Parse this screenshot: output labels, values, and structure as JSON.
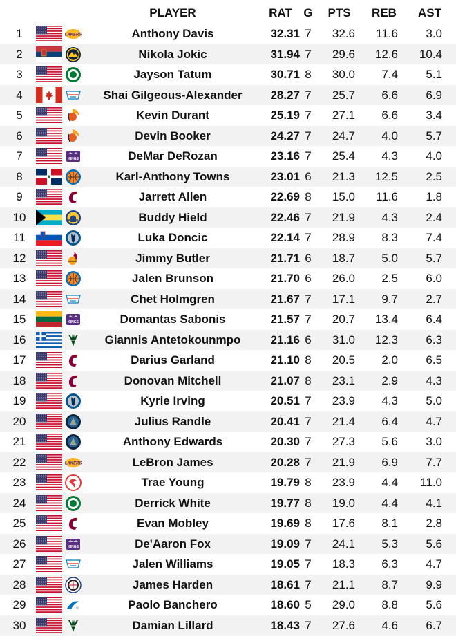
{
  "columns": {
    "player": "PLAYER",
    "rat": "RAT",
    "g": "G",
    "pts": "PTS",
    "reb": "REB",
    "ast": "AST"
  },
  "rows": [
    {
      "rank": "1",
      "flag": "usa",
      "team": "lakers",
      "name": "Anthony Davis",
      "rat": "32.31",
      "g": "7",
      "pts": "32.6",
      "reb": "11.6",
      "ast": "3.0"
    },
    {
      "rank": "2",
      "flag": "serbia",
      "team": "nuggets",
      "name": "Nikola Jokic",
      "rat": "31.94",
      "g": "7",
      "pts": "29.6",
      "reb": "12.6",
      "ast": "10.4"
    },
    {
      "rank": "3",
      "flag": "usa",
      "team": "celtics",
      "name": "Jayson Tatum",
      "rat": "30.71",
      "g": "8",
      "pts": "30.0",
      "reb": "7.4",
      "ast": "5.1"
    },
    {
      "rank": "4",
      "flag": "canada",
      "team": "thunder",
      "name": "Shai Gilgeous-Alexander",
      "rat": "28.27",
      "g": "7",
      "pts": "25.7",
      "reb": "6.6",
      "ast": "6.9"
    },
    {
      "rank": "5",
      "flag": "usa",
      "team": "suns",
      "name": "Kevin Durant",
      "rat": "25.19",
      "g": "7",
      "pts": "27.1",
      "reb": "6.6",
      "ast": "3.4"
    },
    {
      "rank": "6",
      "flag": "usa",
      "team": "suns",
      "name": "Devin Booker",
      "rat": "24.27",
      "g": "7",
      "pts": "24.7",
      "reb": "4.0",
      "ast": "5.7"
    },
    {
      "rank": "7",
      "flag": "usa",
      "team": "kings",
      "name": "DeMar DeRozan",
      "rat": "23.16",
      "g": "7",
      "pts": "25.4",
      "reb": "4.3",
      "ast": "4.0"
    },
    {
      "rank": "8",
      "flag": "dominican",
      "team": "knicks",
      "name": "Karl-Anthony Towns",
      "rat": "23.01",
      "g": "6",
      "pts": "21.3",
      "reb": "12.5",
      "ast": "2.5"
    },
    {
      "rank": "9",
      "flag": "usa",
      "team": "cavaliers",
      "name": "Jarrett Allen",
      "rat": "22.69",
      "g": "8",
      "pts": "15.0",
      "reb": "11.6",
      "ast": "1.8"
    },
    {
      "rank": "10",
      "flag": "bahamas",
      "team": "warriors",
      "name": "Buddy Hield",
      "rat": "22.46",
      "g": "7",
      "pts": "21.9",
      "reb": "4.3",
      "ast": "2.4"
    },
    {
      "rank": "11",
      "flag": "slovenia",
      "team": "mavericks",
      "name": "Luka Doncic",
      "rat": "22.14",
      "g": "7",
      "pts": "28.9",
      "reb": "8.3",
      "ast": "7.4"
    },
    {
      "rank": "12",
      "flag": "usa",
      "team": "heat",
      "name": "Jimmy Butler",
      "rat": "21.71",
      "g": "6",
      "pts": "18.7",
      "reb": "5.0",
      "ast": "5.7"
    },
    {
      "rank": "13",
      "flag": "usa",
      "team": "knicks",
      "name": "Jalen Brunson",
      "rat": "21.70",
      "g": "6",
      "pts": "26.0",
      "reb": "2.5",
      "ast": "6.0"
    },
    {
      "rank": "14",
      "flag": "usa",
      "team": "thunder",
      "name": "Chet Holmgren",
      "rat": "21.67",
      "g": "7",
      "pts": "17.1",
      "reb": "9.7",
      "ast": "2.7"
    },
    {
      "rank": "15",
      "flag": "lithuania",
      "team": "kings",
      "name": "Domantas Sabonis",
      "rat": "21.57",
      "g": "7",
      "pts": "20.7",
      "reb": "13.4",
      "ast": "6.4"
    },
    {
      "rank": "16",
      "flag": "greece",
      "team": "bucks",
      "name": "Giannis Antetokounmpo",
      "rat": "21.16",
      "g": "6",
      "pts": "31.0",
      "reb": "12.3",
      "ast": "6.3"
    },
    {
      "rank": "17",
      "flag": "usa",
      "team": "cavaliers",
      "name": "Darius Garland",
      "rat": "21.10",
      "g": "8",
      "pts": "20.5",
      "reb": "2.0",
      "ast": "6.5"
    },
    {
      "rank": "18",
      "flag": "usa",
      "team": "cavaliers",
      "name": "Donovan Mitchell",
      "rat": "21.07",
      "g": "8",
      "pts": "23.1",
      "reb": "2.9",
      "ast": "4.3"
    },
    {
      "rank": "19",
      "flag": "usa",
      "team": "mavericks",
      "name": "Kyrie Irving",
      "rat": "20.51",
      "g": "7",
      "pts": "23.9",
      "reb": "4.3",
      "ast": "5.0"
    },
    {
      "rank": "20",
      "flag": "usa",
      "team": "timberwolves",
      "name": "Julius Randle",
      "rat": "20.41",
      "g": "7",
      "pts": "21.4",
      "reb": "6.4",
      "ast": "4.7"
    },
    {
      "rank": "21",
      "flag": "usa",
      "team": "timberwolves",
      "name": "Anthony Edwards",
      "rat": "20.30",
      "g": "7",
      "pts": "27.3",
      "reb": "5.6",
      "ast": "3.0"
    },
    {
      "rank": "22",
      "flag": "usa",
      "team": "lakers",
      "name": "LeBron James",
      "rat": "20.28",
      "g": "7",
      "pts": "21.9",
      "reb": "6.9",
      "ast": "7.7"
    },
    {
      "rank": "23",
      "flag": "usa",
      "team": "hawks",
      "name": "Trae Young",
      "rat": "19.79",
      "g": "8",
      "pts": "23.9",
      "reb": "4.4",
      "ast": "11.0"
    },
    {
      "rank": "24",
      "flag": "usa",
      "team": "celtics",
      "name": "Derrick White",
      "rat": "19.77",
      "g": "8",
      "pts": "19.0",
      "reb": "4.4",
      "ast": "4.1"
    },
    {
      "rank": "25",
      "flag": "usa",
      "team": "cavaliers",
      "name": "Evan Mobley",
      "rat": "19.69",
      "g": "8",
      "pts": "17.6",
      "reb": "8.1",
      "ast": "2.8"
    },
    {
      "rank": "26",
      "flag": "usa",
      "team": "kings",
      "name": "De'Aaron Fox",
      "rat": "19.09",
      "g": "7",
      "pts": "24.1",
      "reb": "5.3",
      "ast": "5.6"
    },
    {
      "rank": "27",
      "flag": "usa",
      "team": "thunder",
      "name": "Jalen Williams",
      "rat": "19.05",
      "g": "7",
      "pts": "18.3",
      "reb": "6.3",
      "ast": "4.7"
    },
    {
      "rank": "28",
      "flag": "usa",
      "team": "clippers",
      "name": "James Harden",
      "rat": "18.61",
      "g": "7",
      "pts": "21.1",
      "reb": "8.7",
      "ast": "9.9"
    },
    {
      "rank": "29",
      "flag": "usa",
      "team": "magic",
      "name": "Paolo Banchero",
      "rat": "18.60",
      "g": "5",
      "pts": "29.0",
      "reb": "8.8",
      "ast": "5.6"
    },
    {
      "rank": "30",
      "flag": "usa",
      "team": "bucks",
      "name": "Damian Lillard",
      "rat": "18.43",
      "g": "7",
      "pts": "27.6",
      "reb": "4.6",
      "ast": "6.7"
    }
  ]
}
